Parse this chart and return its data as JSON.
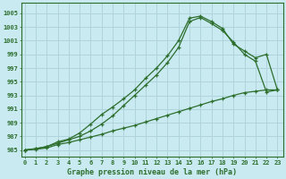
{
  "xlabel": "Graphe pression niveau de la mer (hPa)",
  "bg_color": "#c8eaf0",
  "grid_color": "#b0d4dc",
  "line_color": "#2d6e2d",
  "x_ticks": [
    0,
    1,
    2,
    3,
    4,
    5,
    6,
    7,
    8,
    9,
    10,
    11,
    12,
    13,
    14,
    15,
    16,
    17,
    18,
    19,
    20,
    21,
    22,
    23
  ],
  "y_ticks": [
    985,
    987,
    989,
    991,
    993,
    995,
    997,
    999,
    1001,
    1003,
    1005
  ],
  "ylim": [
    984.0,
    1006.5
  ],
  "xlim": [
    -0.3,
    23.5
  ],
  "line1_x": [
    0,
    1,
    2,
    3,
    4,
    5,
    6,
    7,
    8,
    9,
    10,
    11,
    12,
    13,
    14,
    15,
    16,
    17,
    18,
    19,
    20,
    21,
    22,
    23
  ],
  "line1_y": [
    985.0,
    985.2,
    985.5,
    986.2,
    986.6,
    987.5,
    988.8,
    990.2,
    991.3,
    992.5,
    993.8,
    995.5,
    997.0,
    998.8,
    1001.0,
    1004.3,
    1004.6,
    1003.8,
    1002.8,
    1000.5,
    999.5,
    998.5,
    999.0,
    993.8
  ],
  "line2_x": [
    0,
    1,
    2,
    3,
    4,
    5,
    6,
    7,
    8,
    9,
    10,
    11,
    12,
    13,
    14,
    15,
    16,
    17,
    18,
    19,
    20,
    21,
    22,
    23
  ],
  "line2_y": [
    985.0,
    985.2,
    985.5,
    986.0,
    986.5,
    987.0,
    987.8,
    988.8,
    990.0,
    991.5,
    993.0,
    994.5,
    996.0,
    997.8,
    1000.0,
    1003.8,
    1004.4,
    1003.5,
    1002.5,
    1000.8,
    999.0,
    998.0,
    993.5,
    993.8
  ],
  "line3_x": [
    0,
    1,
    2,
    3,
    4,
    5,
    6,
    7,
    8,
    9,
    10,
    11,
    12,
    13,
    14,
    15,
    16,
    17,
    18,
    19,
    20,
    21,
    22,
    23
  ],
  "line3_y": [
    985.0,
    985.1,
    985.3,
    985.8,
    986.1,
    986.5,
    986.9,
    987.3,
    987.8,
    988.2,
    988.6,
    989.1,
    989.6,
    990.1,
    990.6,
    991.1,
    991.6,
    992.1,
    992.5,
    993.0,
    993.4,
    993.6,
    993.8,
    993.8
  ]
}
